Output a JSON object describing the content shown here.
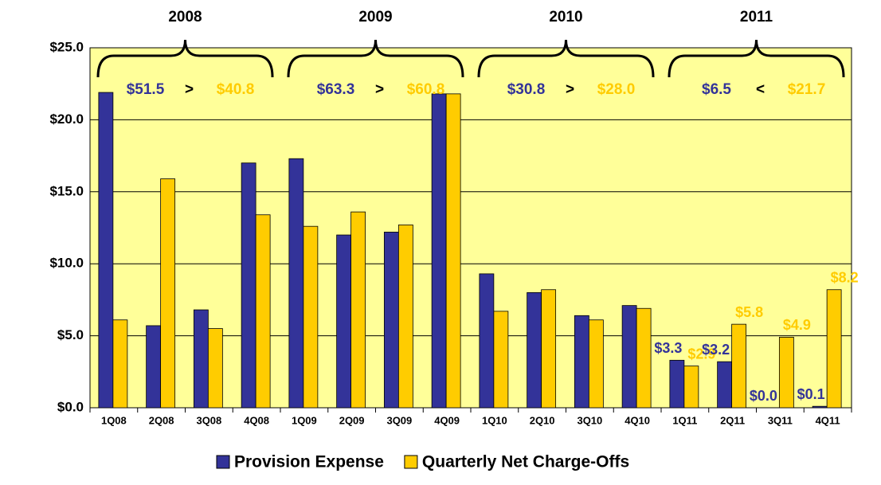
{
  "chart_data": {
    "type": "bar",
    "categories": [
      "1Q08",
      "2Q08",
      "3Q08",
      "4Q08",
      "1Q09",
      "2Q09",
      "3Q09",
      "4Q09",
      "1Q10",
      "2Q10",
      "3Q10",
      "4Q10",
      "1Q11",
      "2Q11",
      "3Q11",
      "4Q11"
    ],
    "series": [
      {
        "name": "Provision Expense",
        "color": "#333399",
        "values": [
          21.9,
          5.7,
          6.8,
          17.0,
          17.3,
          12.0,
          12.2,
          21.8,
          9.3,
          8.0,
          6.4,
          7.1,
          3.3,
          3.2,
          0.0,
          0.1
        ],
        "value_labels": [
          null,
          null,
          null,
          null,
          null,
          null,
          null,
          null,
          null,
          null,
          null,
          null,
          "$3.3",
          "$3.2",
          "$0.0",
          "$0.1"
        ]
      },
      {
        "name": "Quarterly Net Charge-Offs",
        "color": "#ffcc00",
        "values": [
          6.1,
          15.9,
          5.5,
          13.4,
          12.6,
          13.6,
          12.7,
          21.8,
          6.7,
          8.2,
          6.1,
          6.9,
          2.9,
          5.8,
          4.9,
          8.2
        ],
        "value_labels": [
          null,
          null,
          null,
          null,
          null,
          null,
          null,
          null,
          null,
          null,
          null,
          null,
          "$2.9",
          "$5.8",
          "$4.9",
          "$8.2"
        ]
      }
    ],
    "ylim": [
      0,
      25
    ],
    "yticks": [
      {
        "value": 0,
        "label": "$0.0"
      },
      {
        "value": 5,
        "label": "$5.0"
      },
      {
        "value": 10,
        "label": "$10.0"
      },
      {
        "value": 15,
        "label": "$15.0"
      },
      {
        "value": 20,
        "label": "$20.0"
      },
      {
        "value": 25,
        "label": "$25.0"
      }
    ],
    "grid": true,
    "plot_background": "#ffff99",
    "legend": "bottom",
    "annotations": [
      {
        "year": "2008",
        "provision": "$51.5",
        "sign": ">",
        "charge_offs": "$40.8"
      },
      {
        "year": "2009",
        "provision": "$63.3",
        "sign": ">",
        "charge_offs": "$60.8"
      },
      {
        "year": "2010",
        "provision": "$30.8",
        "sign": ">",
        "charge_offs": "$28.0"
      },
      {
        "year": "2011",
        "provision": "$6.5",
        "sign": "<",
        "charge_offs": "$21.7"
      }
    ]
  }
}
